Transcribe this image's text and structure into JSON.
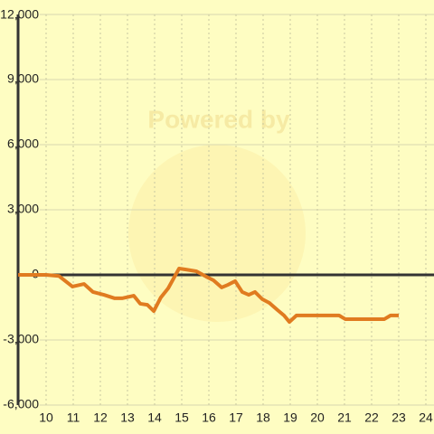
{
  "chart_data": {
    "type": "line",
    "watermark": "Powered by",
    "series": [
      {
        "color": "#e07b20",
        "x": [
          8.97,
          10,
          10.47,
          10.97,
          11.4,
          11.73,
          12.13,
          12.53,
          12.8,
          13.23,
          13.47,
          13.73,
          13.97,
          14.23,
          14.5,
          14.9,
          15.13,
          15.53,
          15.9,
          16.17,
          16.47,
          16.7,
          16.97,
          17.23,
          17.47,
          17.7,
          17.97,
          18.23,
          18.53,
          18.77,
          18.97,
          19.23,
          20.8,
          21.03,
          22.47,
          22.7,
          23
        ],
        "values": [
          0,
          0,
          -50,
          -540,
          -420,
          -790,
          -920,
          -1080,
          -1080,
          -960,
          -1330,
          -1380,
          -1670,
          -1040,
          -620,
          290,
          250,
          170,
          -80,
          -250,
          -580,
          -460,
          -290,
          -790,
          -920,
          -790,
          -1120,
          -1290,
          -1620,
          -1870,
          -2170,
          -1870,
          -1870,
          -2040,
          -2040,
          -1870,
          -1870
        ]
      }
    ],
    "xlim": [
      8.967,
      24.3
    ],
    "xticks": [
      10,
      11,
      12,
      13,
      14,
      15,
      16,
      17,
      18,
      19,
      20,
      21,
      22,
      23,
      24
    ],
    "ylim": [
      -6000,
      12000
    ],
    "yticks": [
      {
        "value": -6000,
        "label": "-6,000"
      },
      {
        "value": -3000,
        "label": "-3,000"
      },
      0,
      {
        "value": 3000,
        "label": "3,000"
      },
      {
        "value": 6000,
        "label": "6,000"
      },
      {
        "value": 9000,
        "label": "9,000"
      },
      {
        "value": 12000,
        "label": "12,000"
      }
    ],
    "grid": true
  }
}
